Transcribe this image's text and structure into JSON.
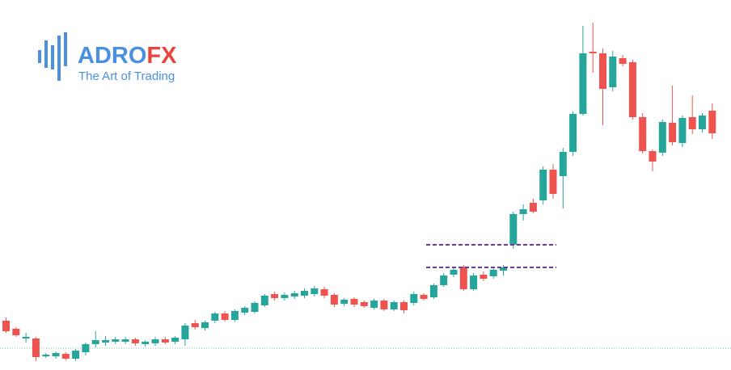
{
  "brand": {
    "name_part1": "ADRO",
    "name_part2": "FX",
    "tagline": "The Art of Trading"
  },
  "chart_data": {
    "type": "candlestick",
    "up_color": "#26a69a",
    "down_color": "#ef5350",
    "level_color": "#6a3d9a",
    "price_line_color": "#7cc4a8",
    "levels": [
      155,
      127
    ],
    "price_line": 27,
    "open": [
      61,
      51,
      39,
      39,
      17,
      17,
      20,
      14,
      22,
      32,
      34,
      35,
      35,
      38,
      32,
      33,
      38,
      35,
      38,
      58,
      52,
      61,
      70,
      62,
      71,
      72,
      80,
      94,
      89,
      91,
      92,
      94,
      100,
      93,
      82,
      88,
      84,
      77,
      86,
      75,
      84,
      83,
      93,
      90,
      105,
      118,
      128,
      100,
      118,
      116,
      123,
      155,
      193,
      207,
      210,
      248,
      240,
      270,
      317,
      394,
      392,
      350,
      386,
      381,
      313,
      271,
      269,
      306,
      281,
      313,
      298,
      321
    ],
    "high": [
      65,
      53,
      46,
      41,
      21,
      23,
      22,
      26,
      34,
      48,
      42,
      41,
      41,
      40,
      37,
      41,
      41,
      42,
      58,
      62,
      61,
      72,
      73,
      75,
      79,
      85,
      94,
      97,
      96,
      98,
      101,
      104,
      103,
      95,
      89,
      90,
      86,
      88,
      88,
      86,
      86,
      97,
      95,
      107,
      120,
      128,
      130,
      120,
      122,
      126,
      130,
      196,
      205,
      212,
      252,
      255,
      275,
      320,
      426,
      430,
      398,
      395,
      390,
      384,
      318,
      273,
      310,
      352,
      315,
      340,
      318,
      330
    ],
    "low": [
      46,
      41,
      34,
      11,
      15,
      14,
      12,
      11,
      18,
      28,
      30,
      32,
      32,
      30,
      29,
      30,
      32,
      32,
      30,
      50,
      49,
      58,
      60,
      60,
      68,
      70,
      78,
      86,
      86,
      88,
      89,
      91,
      89,
      78,
      79,
      78,
      77,
      75,
      73,
      73,
      70,
      80,
      86,
      88,
      103,
      115,
      98,
      98,
      110,
      113,
      117,
      150,
      185,
      194,
      205,
      212,
      200,
      265,
      315,
      368,
      303,
      345,
      376,
      310,
      268,
      246,
      265,
      278,
      276,
      292,
      294,
      286
    ],
    "close": [
      48,
      43,
      41,
      16,
      19,
      21,
      14,
      24,
      32,
      37,
      37,
      38,
      38,
      33,
      35,
      38,
      34,
      40,
      55,
      53,
      59,
      70,
      62,
      73,
      77,
      83,
      92,
      89,
      93,
      95,
      98,
      101,
      92,
      81,
      87,
      81,
      79,
      86,
      75,
      84,
      74,
      94,
      88,
      105,
      117,
      124,
      100,
      117,
      113,
      124,
      127,
      193,
      199,
      196,
      248,
      218,
      270,
      317,
      392,
      392,
      348,
      388,
      379,
      313,
      271,
      258,
      307,
      282,
      312,
      298,
      315,
      293
    ]
  }
}
